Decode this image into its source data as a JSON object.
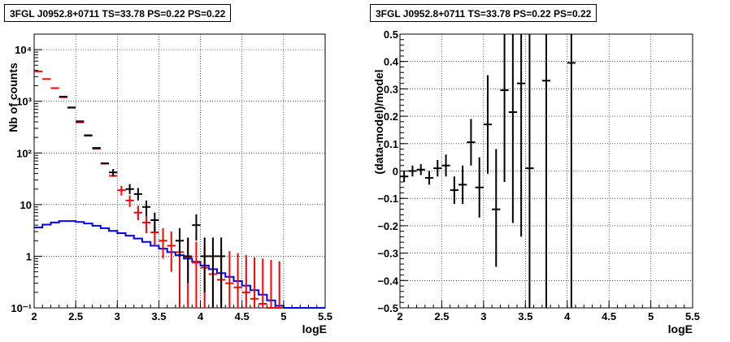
{
  "chart_data": [
    {
      "type": "line",
      "title": "3FGL J0952.8+0711 TS=33.78 PS=0.22 PS=0.22",
      "xlabel": "logE",
      "ylabel": "Nb of counts",
      "xlim": [
        2,
        5.5
      ],
      "ylim": [
        0.1,
        20000
      ],
      "yscale": "log",
      "grid": true,
      "xticks": [
        "2",
        "2.5",
        "3",
        "3.5",
        "4",
        "4.5",
        "5",
        "5.5"
      ],
      "yticks": [
        {
          "value": 0.1,
          "label": "10⁻¹"
        },
        {
          "value": 1,
          "label": "1"
        },
        {
          "value": 10,
          "label": "10"
        },
        {
          "value": 100,
          "label": "10²"
        },
        {
          "value": 1000,
          "label": "10³"
        },
        {
          "value": 10000,
          "label": "10⁴"
        }
      ],
      "bin_edges": [
        2.0,
        2.1,
        2.2,
        2.3,
        2.4,
        2.5,
        2.6,
        2.7,
        2.8,
        2.9,
        3.0,
        3.1,
        3.2,
        3.3,
        3.4,
        3.5,
        3.6,
        3.7,
        3.8,
        3.9,
        4.0,
        4.1,
        4.2,
        4.3,
        4.4,
        4.5,
        4.6,
        4.7,
        4.8,
        4.9,
        5.0,
        5.1,
        5.2,
        5.3,
        5.4,
        5.5
      ],
      "series": [
        {
          "color": "#ff0000",
          "style": "errorbars",
          "points": [
            {
              "x": 2.05,
              "y": 3800
            },
            {
              "x": 2.15,
              "y": 2700
            },
            {
              "x": 2.25,
              "y": 1800
            },
            {
              "x": 2.35,
              "y": 1200
            },
            {
              "x": 2.45,
              "y": 750
            },
            {
              "x": 2.55,
              "y": 390
            },
            {
              "x": 2.65,
              "y": 215
            },
            {
              "x": 2.75,
              "y": 120
            },
            {
              "x": 2.85,
              "y": 62
            },
            {
              "x": 2.95,
              "y": 36
            },
            {
              "x": 3.05,
              "y": 19,
              "lo": 15,
              "hi": 23
            },
            {
              "x": 3.15,
              "y": 12,
              "lo": 9,
              "hi": 15
            },
            {
              "x": 3.25,
              "y": 7,
              "lo": 5,
              "hi": 9.5
            },
            {
              "x": 3.35,
              "y": 4.5,
              "lo": 2.8,
              "hi": 6.5
            },
            {
              "x": 3.45,
              "y": 2.9,
              "lo": 1.6,
              "hi": 4.5
            },
            {
              "x": 3.55,
              "y": 2.0,
              "lo": 0.9,
              "hi": 3.5
            },
            {
              "x": 3.65,
              "y": 1.6,
              "lo": 0.5,
              "hi": 3.0
            },
            {
              "x": 3.75,
              "y": 1.2,
              "lo": 0.1,
              "hi": 2.5
            },
            {
              "x": 3.85,
              "y": 0.95,
              "lo": 0.1,
              "hi": 2.2
            },
            {
              "x": 3.95,
              "y": 0.75,
              "lo": 0.1,
              "hi": 1.9
            },
            {
              "x": 4.05,
              "y": 0.6,
              "lo": 0.1,
              "hi": 1.7
            },
            {
              "x": 4.15,
              "y": 0.45,
              "lo": 0.1,
              "hi": 1.5
            },
            {
              "x": 4.25,
              "y": 0.35,
              "lo": 0.1,
              "hi": 1.35
            },
            {
              "x": 4.35,
              "y": 0.3,
              "lo": 0.1,
              "hi": 1.25
            },
            {
              "x": 4.45,
              "y": 0.25,
              "lo": 0.1,
              "hi": 1.15
            },
            {
              "x": 4.55,
              "y": 0.2,
              "lo": 0.1,
              "hi": 1.05
            },
            {
              "x": 4.65,
              "y": 0.15,
              "lo": 0.1,
              "hi": 0.95
            },
            {
              "x": 4.75,
              "y": 0.12,
              "lo": 0.1,
              "hi": 0.9
            },
            {
              "x": 4.85,
              "y": 0.1,
              "lo": 0.1,
              "hi": 0.85
            },
            {
              "x": 4.95,
              "y": 0.1,
              "lo": 0.1,
              "hi": 0.8
            }
          ]
        },
        {
          "color": "#000000",
          "style": "errorbars",
          "points": [
            {
              "x": 2.35,
              "y": 1230
            },
            {
              "x": 2.45,
              "y": 760
            },
            {
              "x": 2.55,
              "y": 410
            },
            {
              "x": 2.65,
              "y": 220
            },
            {
              "x": 2.75,
              "y": 125
            },
            {
              "x": 2.85,
              "y": 63
            },
            {
              "x": 2.95,
              "y": 42,
              "lo": 35,
              "hi": 49
            },
            {
              "x": 3.15,
              "y": 20,
              "lo": 16,
              "hi": 25
            },
            {
              "x": 3.25,
              "y": 16,
              "lo": 12,
              "hi": 21
            },
            {
              "x": 3.35,
              "y": 9,
              "lo": 6,
              "hi": 12
            },
            {
              "x": 3.45,
              "y": 5,
              "lo": 3,
              "hi": 7
            },
            {
              "x": 3.75,
              "y": 2,
              "lo": 1,
              "hi": 3.5
            },
            {
              "x": 3.85,
              "y": 1,
              "lo": 0.3,
              "hi": 2.3
            },
            {
              "x": 3.95,
              "y": 4,
              "lo": 2,
              "hi": 6.5
            },
            {
              "x": 4.05,
              "y": 1,
              "lo": 0.2,
              "hi": 2.3
            },
            {
              "x": 4.15,
              "y": 1,
              "lo": 0.1,
              "hi": 2.3
            },
            {
              "x": 4.25,
              "y": 1,
              "lo": 0.1,
              "hi": 2.3
            }
          ]
        },
        {
          "color": "#0000ff",
          "style": "step",
          "values": [
            3.6,
            4.1,
            4.5,
            4.8,
            4.8,
            4.6,
            4.3,
            3.9,
            3.5,
            3.1,
            2.8,
            2.5,
            2.2,
            1.9,
            1.6,
            1.4,
            1.2,
            1.05,
            0.9,
            0.78,
            0.66,
            0.56,
            0.47,
            0.4,
            0.33,
            0.27,
            0.22,
            0.18,
            0.14,
            0.11,
            0.1,
            0.1,
            0.1,
            0.1,
            0.1
          ]
        }
      ]
    },
    {
      "type": "scatter",
      "title": "3FGL J0952.8+0711 TS=33.78 PS=0.22 PS=0.22",
      "xlabel": "logE",
      "ylabel": "(data-model)/model",
      "xlim": [
        2,
        5.5
      ],
      "ylim": [
        -0.5,
        0.5
      ],
      "grid": true,
      "xticks": [
        "2",
        "2.5",
        "3",
        "3.5",
        "4",
        "4.5",
        "5",
        "5.5"
      ],
      "yticks": [
        "−0.5",
        "−0.4",
        "−0.3",
        "−0.2",
        "−0.1",
        "0",
        "0.1",
        "0.2",
        "0.3",
        "0.4",
        "0.5"
      ],
      "series": [
        {
          "color": "#000000",
          "style": "errorbars",
          "points": [
            {
              "x": 2.05,
              "y": -0.02,
              "lo": -0.04,
              "hi": 0.0
            },
            {
              "x": 2.15,
              "y": 0.0,
              "lo": -0.02,
              "hi": 0.02
            },
            {
              "x": 2.25,
              "y": 0.005,
              "lo": -0.015,
              "hi": 0.025
            },
            {
              "x": 2.35,
              "y": -0.025,
              "lo": -0.05,
              "hi": 0.0
            },
            {
              "x": 2.45,
              "y": 0.01,
              "lo": -0.02,
              "hi": 0.04
            },
            {
              "x": 2.55,
              "y": 0.02,
              "lo": -0.02,
              "hi": 0.06
            },
            {
              "x": 2.65,
              "y": -0.07,
              "lo": -0.12,
              "hi": -0.02
            },
            {
              "x": 2.75,
              "y": -0.05,
              "lo": -0.12,
              "hi": 0.02
            },
            {
              "x": 2.85,
              "y": 0.105,
              "lo": 0.02,
              "hi": 0.19
            },
            {
              "x": 2.95,
              "y": -0.06,
              "lo": -0.17,
              "hi": 0.05
            },
            {
              "x": 3.05,
              "y": 0.17,
              "lo": -0.01,
              "hi": 0.35
            },
            {
              "x": 3.15,
              "y": -0.14,
              "lo": -0.35,
              "hi": 0.08
            },
            {
              "x": 3.25,
              "y": 0.295,
              "lo": -0.04,
              "hi": 0.63
            },
            {
              "x": 3.35,
              "y": 0.215,
              "lo": -0.19,
              "hi": 0.62
            },
            {
              "x": 3.45,
              "y": 0.32,
              "lo": -0.24,
              "hi": 0.88
            },
            {
              "x": 3.55,
              "y": 0.01,
              "lo": -1.0,
              "hi": 1.0
            },
            {
              "x": 3.75,
              "y": 0.33,
              "lo": -1.0,
              "hi": 1.0
            },
            {
              "x": 4.05,
              "y": 0.395,
              "lo": -1.0,
              "hi": 1.0
            }
          ]
        }
      ]
    }
  ]
}
